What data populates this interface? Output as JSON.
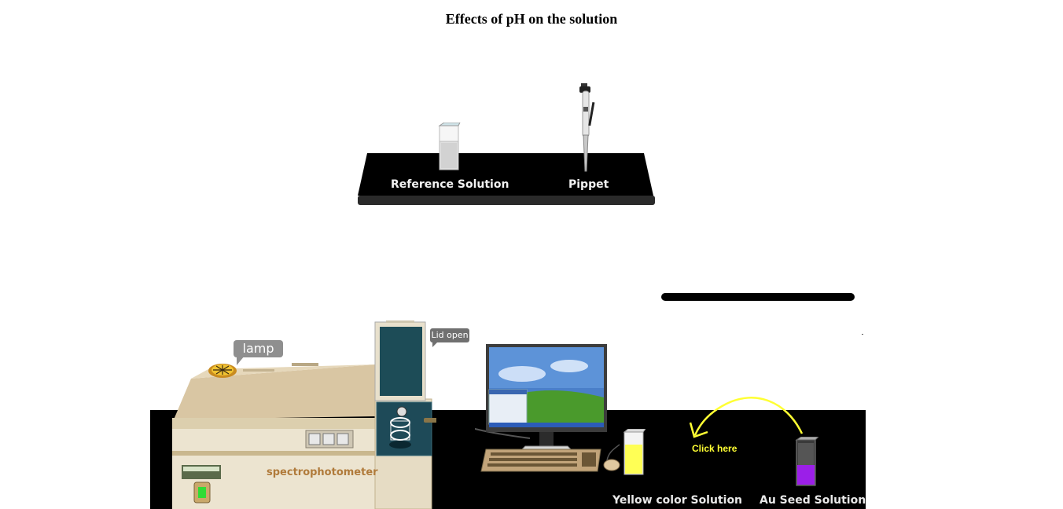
{
  "title": "Effects of pH on the solution",
  "upper_shelf": {
    "reference_label": "Reference Solution",
    "pipette_label": "Pippet"
  },
  "spectrophotometer": {
    "brand_label": "spectrophotometer",
    "lamp_callout": "lamp",
    "lid_callout": "Lid open"
  },
  "bench": {
    "click_hint": "Click here",
    "yellow_label": "Yellow color Solution",
    "seed_label": "Au Seed Solution"
  },
  "colors": {
    "bench": "#000000",
    "yellow_solution": "#ffff55",
    "seed_solution": "#9b1fe8",
    "arrow": "#ffff33"
  }
}
